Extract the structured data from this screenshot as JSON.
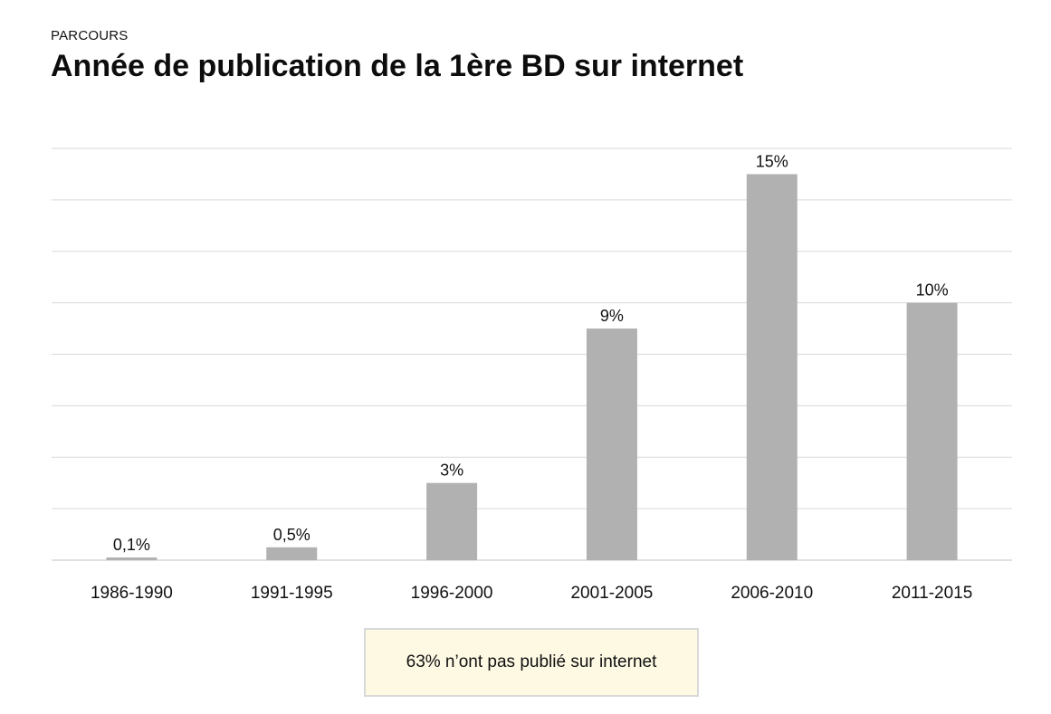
{
  "header": {
    "kicker": "PARCOURS",
    "title": "Année de publication de la 1ère BD sur internet"
  },
  "chart_data": {
    "type": "bar",
    "title": "Année de publication de la 1ère BD sur internet",
    "categories": [
      "1986-1990",
      "1991-1995",
      "1996-2000",
      "2001-2005",
      "2006-2010",
      "2011-2015"
    ],
    "values": [
      0.1,
      0.5,
      3,
      9,
      15,
      10
    ],
    "value_labels": [
      "0,1%",
      "0,5%",
      "3%",
      "9%",
      "15%",
      "10%"
    ],
    "ylim": [
      0,
      16
    ],
    "grid": true,
    "legend": "none",
    "xlabel": "",
    "ylabel": "",
    "bar_color": "#b1b1b1",
    "grid_color": "#d9d9d9"
  },
  "note": {
    "text": "63% n’ont pas publié sur internet",
    "background": "#fdf9e3"
  }
}
